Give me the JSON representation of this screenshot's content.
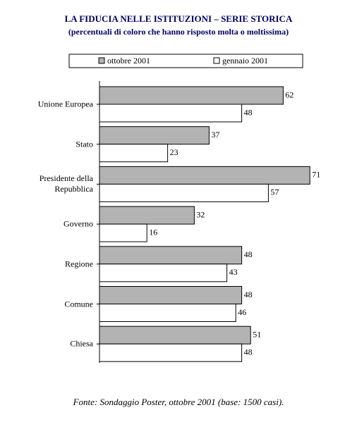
{
  "chart_data": {
    "type": "hbar",
    "title": "LA FIDUCIA NELLE ISTITUZIONI – SERIE STORICA",
    "subtitle": "(percentuali di coloro che hanno risposto molta o moltissima)",
    "categories": [
      "Unione Europea",
      "Stato",
      "Presidente della Repubblica",
      "Governo",
      "Regione",
      "Comune",
      "Chiesa"
    ],
    "series": [
      {
        "name": "ottobre 2001",
        "color": "#b3b3b3",
        "values": [
          62,
          37,
          71,
          32,
          48,
          48,
          51
        ]
      },
      {
        "name": "gennaio 2001",
        "color": "#ffffff",
        "values": [
          48,
          23,
          57,
          16,
          43,
          46,
          48
        ]
      }
    ],
    "source": "Fonte: Sondaggio Poster, ottobre 2001 (base: 1500 casi)."
  }
}
